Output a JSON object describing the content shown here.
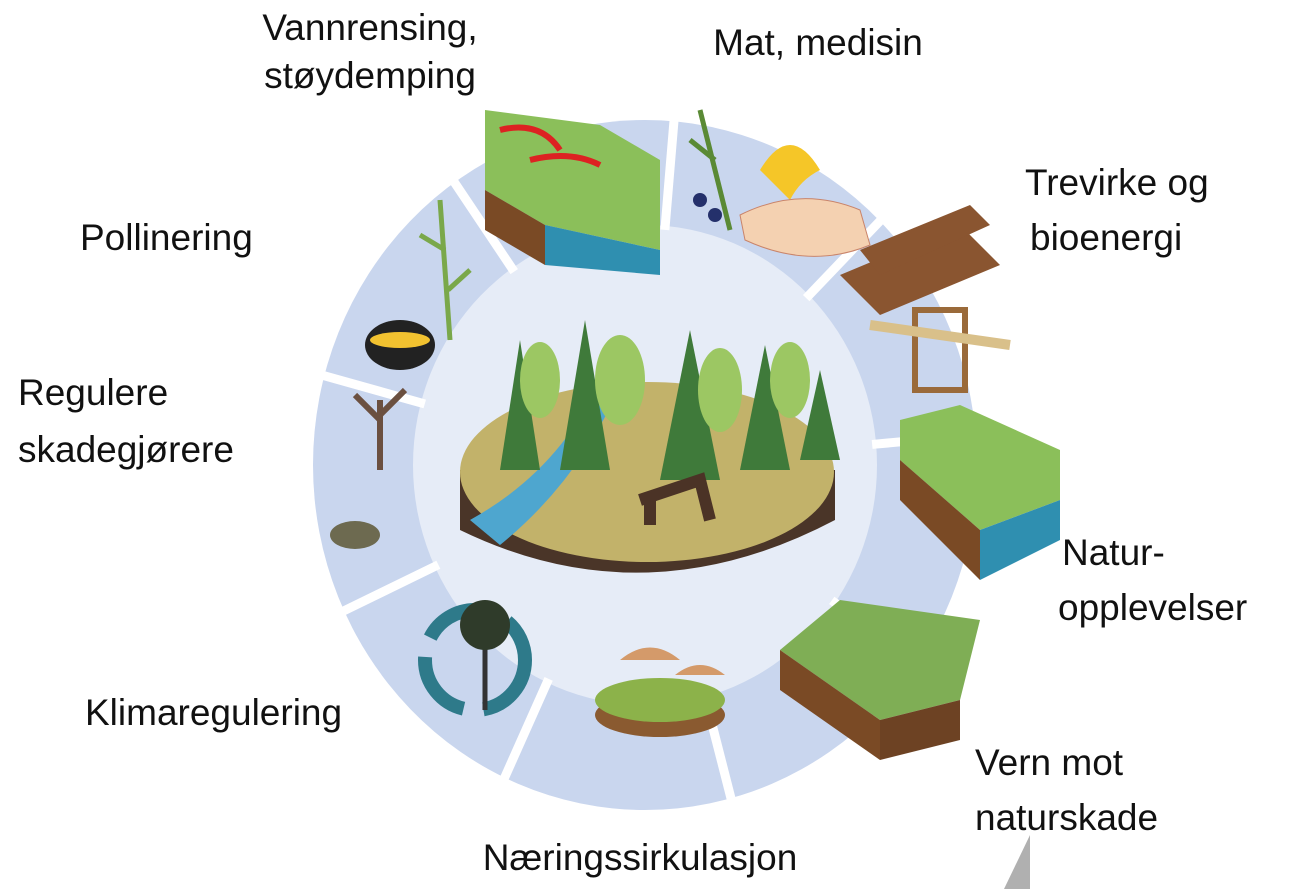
{
  "nodes": [
    {
      "lines": [
        "Vannrensing,",
        "støydemping"
      ]
    },
    {
      "lines": [
        "Mat, medisin"
      ]
    },
    {
      "lines": [
        "Trevirke og",
        "bioenergi"
      ]
    },
    {
      "lines": [
        "Pollinering"
      ]
    },
    {
      "lines": [
        "Regulere",
        "skadegjørere"
      ]
    },
    {
      "lines": [
        "Natur-",
        "opplevelser"
      ]
    },
    {
      "lines": [
        "Klimaregulering"
      ]
    },
    {
      "lines": [
        "Vern mot",
        "naturskade"
      ]
    },
    {
      "lines": [
        "Næringssirkulasjon"
      ]
    }
  ]
}
